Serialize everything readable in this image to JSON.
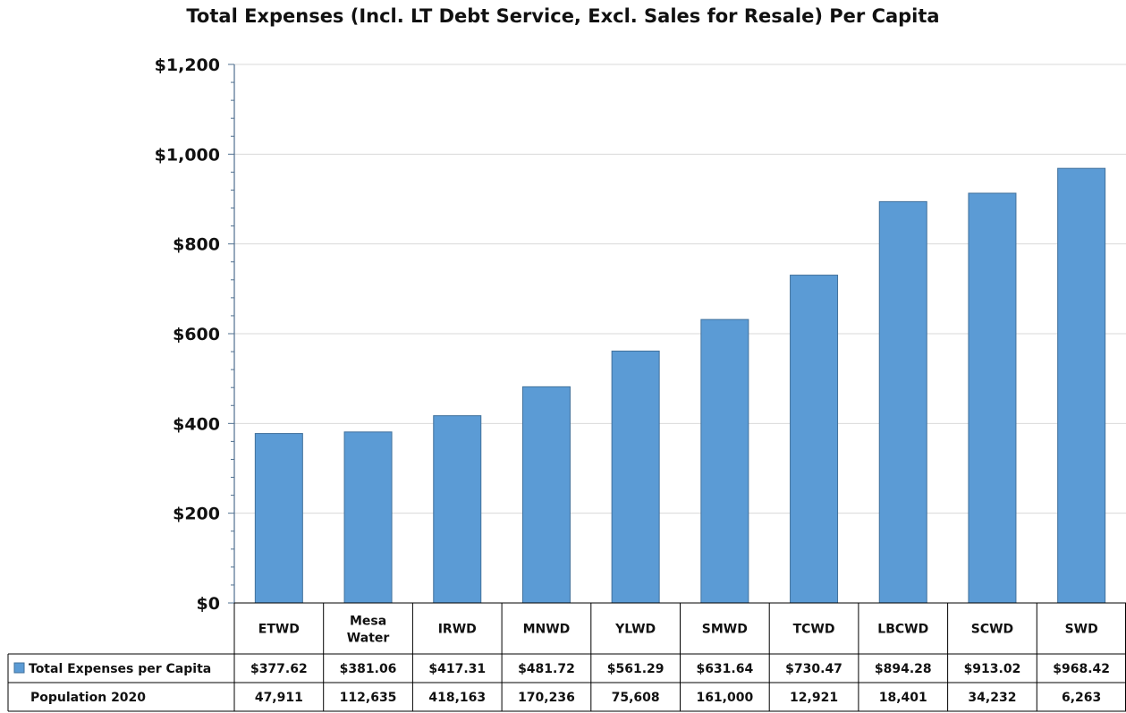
{
  "chart_data": {
    "type": "bar",
    "title": "Total Expenses (Incl. LT Debt Service, Excl. Sales for Resale) Per Capita",
    "categories": [
      "ETWD",
      "Mesa Water",
      "IRWD",
      "MNWD",
      "YLWD",
      "SMWD",
      "TCWD",
      "LBCWD",
      "SCWD",
      "SWD"
    ],
    "series": [
      {
        "name": "Total Expenses per Capita",
        "values": [
          377.62,
          381.06,
          417.31,
          481.72,
          561.29,
          631.64,
          730.47,
          894.28,
          913.02,
          968.42
        ],
        "value_labels": [
          "$377.62",
          "$381.06",
          "$417.31",
          "$481.72",
          "$561.29",
          "$631.64",
          "$730.47",
          "$894.28",
          "$913.02",
          "$968.42"
        ]
      }
    ],
    "table_rows": [
      {
        "label": "Population 2020",
        "values": [
          "47,911",
          "112,635",
          "418,163",
          "170,236",
          "75,608",
          "161,000",
          "12,921",
          "18,401",
          "34,232",
          "6,263"
        ]
      }
    ],
    "ylim": [
      0,
      1200
    ],
    "yticks": [
      0,
      200,
      400,
      600,
      800,
      1000,
      1200
    ],
    "ytick_labels": [
      "$0",
      "$200",
      "$400",
      "$600",
      "$800",
      "$1,000",
      "$1,200"
    ],
    "grid": true,
    "legend": "data-table",
    "colors": {
      "bar": "#5b9bd5",
      "bar_edge": "#41719c",
      "grid": "#d9d9d9",
      "axis": "#4f6f8f"
    }
  }
}
